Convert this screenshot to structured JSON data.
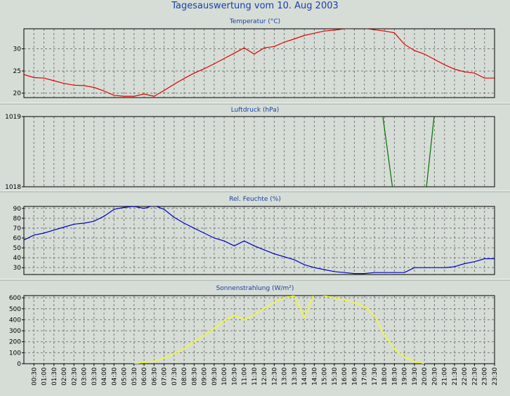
{
  "title": "Tagesauswertung vom 10. Aug 2003",
  "colors": {
    "background": "#d6ddd6",
    "plot": "#d6ddd6",
    "grid": "#7a7a7a",
    "title": "#1a3ea8"
  },
  "x_tick_labels": [
    "00:30",
    "01:00",
    "01:30",
    "02:00",
    "02:30",
    "03:00",
    "03:30",
    "04:00",
    "04:30",
    "05:00",
    "05:30",
    "06:00",
    "06:30",
    "07:00",
    "07:30",
    "08:00",
    "08:30",
    "09:00",
    "09:30",
    "10:00",
    "10:30",
    "11:00",
    "11:30",
    "12:00",
    "12:30",
    "13:00",
    "13:30",
    "14:00",
    "14:30",
    "15:00",
    "15:30",
    "16:00",
    "16:30",
    "17:00",
    "17:30",
    "18:00",
    "18:30",
    "19:00",
    "19:30",
    "20:00",
    "20:30",
    "21:00",
    "21:30",
    "22:00",
    "22:30",
    "23:00",
    "23:30"
  ],
  "chart_data": [
    {
      "type": "line",
      "title": "Temperatur (°C)",
      "color": "#e00000",
      "ylim": [
        19,
        34.5
      ],
      "yticks": [
        20,
        25,
        30
      ],
      "grid": true,
      "series": [
        {
          "x": [
            0,
            0.5,
            1,
            1.5,
            2,
            2.5,
            3,
            3.5,
            4,
            4.5,
            5,
            5.5,
            6,
            6.5,
            7,
            7.5,
            8,
            8.5,
            9,
            9.5,
            10,
            10.5,
            11,
            11.5,
            12,
            12.5,
            13,
            13.5,
            14,
            14.5,
            15,
            15.5,
            16,
            16.5,
            17,
            17.5,
            18,
            18.5,
            19,
            19.5,
            20,
            20.5,
            21,
            21.5,
            22,
            22.5,
            23,
            23.5
          ],
          "y": [
            24.2,
            23.5,
            23.4,
            22.8,
            22.2,
            21.8,
            21.7,
            21.3,
            20.5,
            19.5,
            19.3,
            19.3,
            19.8,
            19.3,
            20.6,
            22.0,
            23.3,
            24.5,
            25.5,
            26.6,
            27.8,
            29.0,
            30.2,
            28.8,
            30.2,
            30.5,
            31.5,
            32.2,
            33.0,
            33.5,
            34.0,
            34.2,
            34.5,
            34.6,
            34.6,
            34.3,
            34.0,
            33.6,
            31.0,
            29.6,
            28.8,
            27.6,
            26.4,
            25.4,
            24.8,
            24.5,
            23.4,
            23.4
          ]
        }
      ]
    },
    {
      "type": "line",
      "title": "Luftdruck (hPa)",
      "color": "#007000",
      "ylim": [
        1018,
        1019
      ],
      "yticks": [
        1018,
        1019
      ],
      "grid": true,
      "series": [
        {
          "x": [
            17.9,
            18.4,
            18.5,
            20.0,
            20.1,
            20.5
          ],
          "y": [
            1019.05,
            1018.0,
            1017.9,
            1017.9,
            1018.0,
            1019.05
          ]
        }
      ]
    },
    {
      "type": "line",
      "title": "Rel. Feuchte (%)",
      "color": "#0000c0",
      "ylim": [
        23,
        92
      ],
      "yticks": [
        30,
        40,
        50,
        60,
        70,
        80,
        90
      ],
      "grid": true,
      "series": [
        {
          "x": [
            0,
            0.5,
            1,
            1.5,
            2,
            2.5,
            3,
            3.5,
            4,
            4.5,
            5,
            5.5,
            6,
            6.5,
            7,
            7.5,
            8,
            8.5,
            9,
            9.5,
            10,
            10.5,
            11,
            11.5,
            12,
            12.5,
            13,
            13.5,
            14,
            14.5,
            15,
            15.5,
            16,
            16.5,
            17,
            17.5,
            18,
            18.5,
            19,
            19.5,
            20,
            20.5,
            21,
            21.5,
            22,
            22.5,
            23,
            23.5
          ],
          "y": [
            58,
            63,
            65,
            68,
            71,
            74,
            75,
            77,
            82,
            89,
            91,
            92,
            90,
            93,
            89,
            81,
            75,
            70,
            65,
            60,
            57,
            52,
            57,
            52,
            48,
            44,
            41,
            38,
            33,
            30,
            28,
            26,
            25,
            24,
            24,
            25,
            25,
            25,
            25,
            30,
            30,
            30,
            30,
            31,
            34,
            36,
            39,
            39
          ]
        }
      ]
    },
    {
      "type": "line",
      "title": "Sonnenstrahlung (W/m²)",
      "color": "#ffff00",
      "ylim": [
        0,
        620
      ],
      "yticks": [
        0,
        100,
        200,
        300,
        400,
        500,
        600
      ],
      "grid": true,
      "series": [
        {
          "x": [
            5.5,
            6,
            6.5,
            7,
            7.5,
            8,
            8.5,
            9,
            9.5,
            10,
            10.5,
            11,
            11.5,
            12,
            12.5,
            13,
            13.5,
            14,
            14.5,
            15,
            15.5,
            16,
            16.5,
            17,
            17.5,
            18,
            18.5,
            19,
            19.5,
            20
          ],
          "y": [
            0,
            10,
            25,
            50,
            90,
            140,
            200,
            260,
            320,
            390,
            440,
            400,
            450,
            500,
            560,
            600,
            620,
            420,
            640,
            620,
            600,
            580,
            560,
            520,
            440,
            260,
            140,
            60,
            20,
            0
          ]
        }
      ]
    }
  ]
}
